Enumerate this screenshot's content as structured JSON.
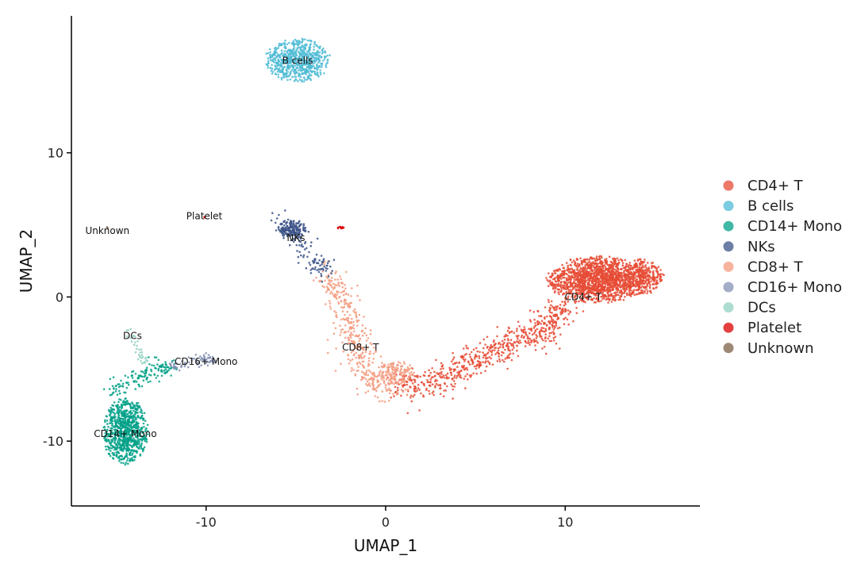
{
  "chart_data": {
    "type": "scatter",
    "title": "",
    "xlabel": "UMAP_1",
    "ylabel": "UMAP_2",
    "xlim": [
      -17.5,
      17.5
    ],
    "ylim": [
      -14.5,
      19.5
    ],
    "xticks": [
      -10,
      0,
      10
    ],
    "yticks": [
      -10,
      0,
      10
    ],
    "grid": false,
    "legend_position": "right",
    "clusters": [
      {
        "name": "CD4+ T",
        "color": "#E64B35",
        "label_at": [
          11,
          0
        ]
      },
      {
        "name": "B cells",
        "color": "#4DBBD5",
        "label_at": [
          -4.9,
          16.4
        ]
      },
      {
        "name": "CD14+ Mono",
        "color": "#00A087",
        "label_at": [
          -14.5,
          -9.5
        ]
      },
      {
        "name": "NKs",
        "color": "#3C5488",
        "label_at": [
          -5,
          4.1
        ]
      },
      {
        "name": "CD8+ T",
        "color": "#F39B7F",
        "label_at": [
          -1.4,
          -3.5
        ]
      },
      {
        "name": "CD16+ Mono",
        "color": "#8491B4",
        "label_at": [
          -10,
          -4.5
        ]
      },
      {
        "name": "DCs",
        "color": "#91D1C2",
        "label_at": [
          -14.1,
          -2.7
        ]
      },
      {
        "name": "Platelet",
        "color": "#DC0000",
        "label_at": [
          -10.1,
          5.6
        ]
      },
      {
        "name": "Unknown",
        "color": "#7E6148",
        "label_at": [
          -15.5,
          4.6
        ]
      }
    ]
  }
}
